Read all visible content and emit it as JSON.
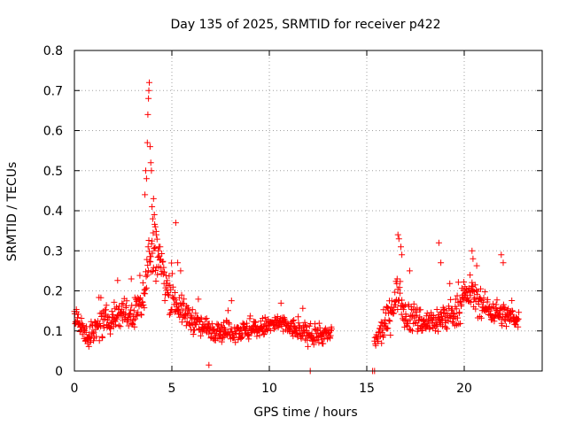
{
  "chart_data": {
    "type": "scatter",
    "title": "Day 135 of 2025, SRMTID for receiver p422",
    "xlabel": "GPS time / hours",
    "ylabel": "SRMTID / TECUs",
    "xlim": [
      0,
      24
    ],
    "ylim": [
      0,
      0.8
    ],
    "x_ticks": [
      0,
      5,
      10,
      15,
      20
    ],
    "y_ticks": [
      0,
      0.1,
      0.2,
      0.3,
      0.4,
      0.5,
      0.6,
      0.7,
      0.8
    ],
    "x_tick_labels": [
      "0",
      "5",
      "10",
      "15",
      "20"
    ],
    "y_tick_labels": [
      "0",
      "0.1",
      "0.2",
      "0.3",
      "0.4",
      "0.5",
      "0.6",
      "0.7",
      "0.8"
    ],
    "grid": true,
    "marker": "+",
    "series": [
      {
        "name": "SRMTID",
        "color": "#ff0000",
        "segments": [
          {
            "x_range": [
              0.0,
              13.2
            ],
            "step": 0.02,
            "baseline": [
              [
                0.0,
                0.13
              ],
              [
                0.3,
                0.11
              ],
              [
                0.8,
                0.09
              ],
              [
                1.5,
                0.12
              ],
              [
                2.5,
                0.15
              ],
              [
                3.0,
                0.13
              ],
              [
                3.5,
                0.18
              ],
              [
                3.8,
                0.28
              ],
              [
                4.2,
                0.3
              ],
              [
                4.8,
                0.2
              ],
              [
                5.5,
                0.15
              ],
              [
                6.5,
                0.11
              ],
              [
                7.5,
                0.1
              ],
              [
                9.0,
                0.1
              ],
              [
                10.5,
                0.12
              ],
              [
                12.0,
                0.09
              ],
              [
                13.2,
                0.09
              ]
            ],
            "spread": [
              [
                0.0,
                0.05
              ],
              [
                3.0,
                0.06
              ],
              [
                4.0,
                0.12
              ],
              [
                5.0,
                0.06
              ],
              [
                7.0,
                0.04
              ],
              [
                13.2,
                0.035
              ]
            ]
          },
          {
            "x_range": [
              15.4,
              22.8
            ],
            "step": 0.02,
            "baseline": [
              [
                15.4,
                0.07
              ],
              [
                16.0,
                0.12
              ],
              [
                16.6,
                0.2
              ],
              [
                17.0,
                0.14
              ],
              [
                18.0,
                0.12
              ],
              [
                19.0,
                0.13
              ],
              [
                19.6,
                0.15
              ],
              [
                20.3,
                0.2
              ],
              [
                21.0,
                0.16
              ],
              [
                22.0,
                0.14
              ],
              [
                22.8,
                0.13
              ]
            ],
            "spread": [
              [
                15.4,
                0.04
              ],
              [
                16.6,
                0.07
              ],
              [
                18.0,
                0.05
              ],
              [
                20.3,
                0.06
              ],
              [
                22.8,
                0.04
              ]
            ]
          }
        ],
        "extra_points": [
          [
            3.62,
            0.44
          ],
          [
            3.66,
            0.5
          ],
          [
            3.7,
            0.48
          ],
          [
            3.74,
            0.57
          ],
          [
            3.77,
            0.64
          ],
          [
            3.8,
            0.68
          ],
          [
            3.82,
            0.7
          ],
          [
            3.84,
            0.72
          ],
          [
            3.88,
            0.56
          ],
          [
            3.92,
            0.52
          ],
          [
            3.95,
            0.5
          ],
          [
            3.98,
            0.41
          ],
          [
            4.02,
            0.38
          ],
          [
            4.06,
            0.43
          ],
          [
            4.1,
            0.39
          ],
          [
            4.15,
            0.36
          ],
          [
            4.2,
            0.34
          ],
          [
            4.3,
            0.3
          ],
          [
            4.4,
            0.31
          ],
          [
            5.2,
            0.37
          ],
          [
            5.3,
            0.27
          ],
          [
            5.45,
            0.25
          ],
          [
            16.6,
            0.34
          ],
          [
            16.65,
            0.33
          ],
          [
            16.75,
            0.31
          ],
          [
            16.8,
            0.29
          ],
          [
            17.2,
            0.25
          ],
          [
            18.7,
            0.32
          ],
          [
            18.8,
            0.27
          ],
          [
            20.4,
            0.3
          ],
          [
            20.45,
            0.28
          ],
          [
            21.9,
            0.29
          ],
          [
            22.0,
            0.27
          ],
          [
            6.9,
            0.015
          ],
          [
            12.1,
            0.0
          ],
          [
            15.3,
            0.0
          ],
          [
            15.4,
            0.0
          ]
        ]
      }
    ]
  }
}
